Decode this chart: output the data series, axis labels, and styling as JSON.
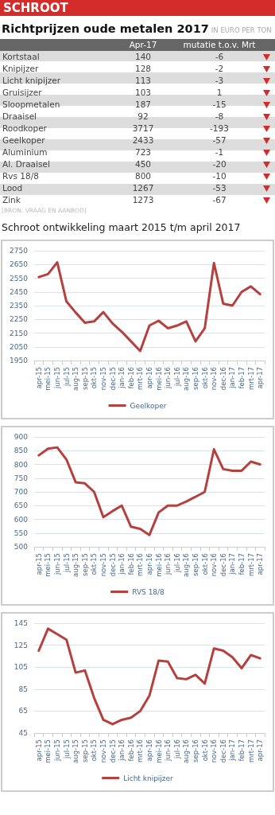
{
  "chart_data": [
    {
      "type": "other",
      "title": "Richtprijzen oude metalen 2017",
      "subtitle": "IN EURO PER TON",
      "annotations": [
        "SCHROOT",
        "[BRON: VRAAG EN AANBOD]"
      ],
      "categories": [
        "Kortstaal",
        "Knipijzer",
        "Licht knipijzer",
        "Gruisijzer",
        "Sloopmetalen",
        "Draaisel",
        "Roodkoper",
        "Geelkoper",
        "Aluminium",
        "Al. Draaisel",
        "Rvs 18/8",
        "Lood",
        "Zink"
      ],
      "series": [
        {
          "name": "Apr-17",
          "values": [
            140,
            128,
            113,
            103,
            187,
            92,
            3717,
            2433,
            723,
            450,
            800,
            1267,
            1273
          ]
        },
        {
          "name": "mutatie t.o.v. Mrt",
          "values": [
            -6,
            -2,
            -3,
            1,
            -15,
            -8,
            -193,
            -57,
            -1,
            -20,
            -10,
            -53,
            -67
          ]
        }
      ],
      "data_labels": true
    },
    {
      "type": "line",
      "title": "Schroot ontwikkeling maart 2015 t/m april 2017",
      "categories": [
        "apr-15",
        "mei-15",
        "jun-15",
        "jul-15",
        "aug-15",
        "sep-15",
        "okt-15",
        "nov-15",
        "dec-15",
        "jan-16",
        "feb-16",
        "mrt-16",
        "apr-16",
        "mei-16",
        "jun-16",
        "jul-16",
        "aug-16",
        "sep-16",
        "okt-16",
        "nov-16",
        "dec-16",
        "jan-17",
        "feb-17",
        "mrt-17",
        "apr-17"
      ],
      "series": [
        {
          "name": "Geelkoper",
          "color": "#b5403d",
          "values": [
            2558,
            2580,
            2665,
            2380,
            2300,
            2225,
            2235,
            2303,
            2220,
            2160,
            2090,
            2020,
            2205,
            2240,
            2185,
            2205,
            2235,
            2090,
            2185,
            2660,
            2365,
            2350,
            2450,
            2490,
            2433
          ]
        }
      ],
      "ylim": [
        1950,
        2750
      ],
      "yticks": [
        1950,
        2050,
        2150,
        2250,
        2350,
        2450,
        2550,
        2650,
        2750
      ],
      "grid": "y",
      "legend": "bottom",
      "marker": "none",
      "line_style": "solid"
    },
    {
      "type": "line",
      "categories": [
        "apr-15",
        "mei-15",
        "jun-15",
        "jul-15",
        "aug-15",
        "sep-15",
        "okt-15",
        "nov-15",
        "dec-15",
        "jan-16",
        "feb-16",
        "mrt-16",
        "apr-16",
        "mei-16",
        "jun-16",
        "jul-16",
        "aug-16",
        "sep-16",
        "okt-16",
        "nov-16",
        "dec-16",
        "jan-17",
        "feb-17",
        "mrt-17",
        "apr-17"
      ],
      "series": [
        {
          "name": "RVS 18/8",
          "color": "#b5403d",
          "values": [
            833,
            857,
            862,
            818,
            735,
            731,
            700,
            608,
            630,
            650,
            573,
            565,
            543,
            625,
            650,
            650,
            665,
            682,
            700,
            855,
            783,
            777,
            777,
            810,
            800
          ]
        }
      ],
      "ylim": [
        500,
        900
      ],
      "yticks": [
        500,
        550,
        600,
        650,
        700,
        750,
        800,
        850,
        900
      ],
      "grid": "y",
      "legend": "bottom",
      "marker": "none",
      "line_style": "solid"
    },
    {
      "type": "line",
      "categories": [
        "apr-15",
        "mei-15",
        "jun-15",
        "jul-15",
        "aug-15",
        "sep-15",
        "okt-15",
        "nov-15",
        "dec-15",
        "jan-16",
        "feb-16",
        "mrt-16",
        "apr-16",
        "mei-16",
        "jun-16",
        "jul-16",
        "aug-16",
        "sep-16",
        "okt-16",
        "nov-16",
        "dec-16",
        "jan-17",
        "feb-17",
        "mrt-17",
        "apr-17"
      ],
      "series": [
        {
          "name": "Licht knipijzer",
          "color": "#b5403d",
          "values": [
            120,
            140,
            135,
            130,
            100,
            102,
            77,
            57,
            53,
            57,
            59,
            65,
            79,
            111,
            110,
            95,
            94,
            98,
            90,
            122,
            120,
            114,
            104,
            116,
            113
          ]
        }
      ],
      "ylim": [
        45,
        145
      ],
      "yticks": [
        45,
        65,
        85,
        105,
        125,
        145
      ],
      "grid": "y",
      "legend": "bottom",
      "marker": "none",
      "line_style": "solid"
    }
  ]
}
